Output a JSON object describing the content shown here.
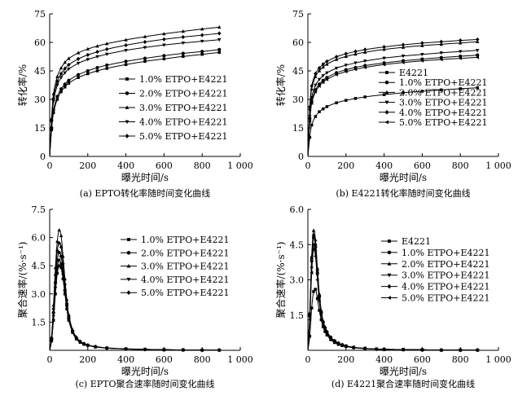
{
  "chart_data": [
    {
      "type": "line",
      "title": "",
      "caption": "(a) EPTO转化率随时间变化曲线",
      "xlabel": "曝光时间/s",
      "ylabel": "转化率/%",
      "xlim": [
        0,
        1000
      ],
      "ylim": [
        0,
        75
      ],
      "xticks": [
        0,
        200,
        400,
        600,
        800,
        1000
      ],
      "xtick_labels": [
        "0",
        "200",
        "400",
        "600",
        "800",
        "1 000"
      ],
      "yticks": [
        0,
        15,
        30,
        45,
        60,
        75
      ],
      "ytick_labels": [
        "0",
        "15",
        "30",
        "45",
        "60",
        "75"
      ],
      "legend_position": "center-right",
      "x": [
        0,
        10,
        20,
        40,
        60,
        80,
        100,
        150,
        200,
        250,
        300,
        400,
        500,
        600,
        700,
        800,
        890
      ],
      "series": [
        {
          "name": "1.0% ETPO+E4221",
          "marker": "square",
          "values": [
            0,
            14,
            23,
            30,
            34,
            36.5,
            38.5,
            41.5,
            43.5,
            45,
            46.3,
            48.3,
            50,
            51.3,
            52.6,
            53.7,
            54.7
          ]
        },
        {
          "name": "2.0% ETPO+E4221",
          "marker": "circle",
          "values": [
            0,
            15,
            24.5,
            31.5,
            35.5,
            38,
            40,
            43,
            45,
            46.7,
            48,
            50,
            51.6,
            53,
            54.2,
            55.2,
            56.2
          ]
        },
        {
          "name": "3.0% ETPO+E4221",
          "marker": "triangle-up",
          "values": [
            0,
            20,
            33,
            42,
            46.5,
            49.5,
            51.5,
            54.5,
            56.5,
            58,
            59.3,
            61.3,
            63,
            64.5,
            65.8,
            67,
            68
          ]
        },
        {
          "name": "4.0% ETPO+E4221",
          "marker": "triangle-down",
          "values": [
            0,
            18,
            29,
            37.5,
            41.5,
            44,
            46,
            49,
            51,
            52.5,
            53.8,
            55.8,
            57.3,
            58.6,
            59.7,
            60.6,
            61.4
          ]
        },
        {
          "name": "5.0% ETPO+E4221",
          "marker": "diamond",
          "values": [
            0,
            19,
            30.5,
            39.5,
            43.5,
            46.2,
            48.2,
            51.3,
            53.4,
            55,
            56.4,
            58.5,
            60.2,
            61.6,
            62.8,
            63.8,
            64.7
          ]
        }
      ]
    },
    {
      "type": "line",
      "title": "",
      "caption": "(b) E4221转化率随时间变化曲线",
      "xlabel": "曝光时间/s",
      "ylabel": "转化率/%",
      "xlim": [
        0,
        1000
      ],
      "ylim": [
        0,
        75
      ],
      "xticks": [
        0,
        200,
        400,
        600,
        800,
        1000
      ],
      "xtick_labels": [
        "0",
        "200",
        "400",
        "600",
        "800",
        "1 000"
      ],
      "yticks": [
        0,
        15,
        30,
        45,
        60,
        75
      ],
      "ytick_labels": [
        "0",
        "15",
        "30",
        "45",
        "60",
        "75"
      ],
      "legend_position": "center-right",
      "x": [
        0,
        10,
        20,
        40,
        60,
        80,
        100,
        150,
        200,
        250,
        300,
        400,
        500,
        600,
        700,
        800,
        890
      ],
      "series": [
        {
          "name": "E4221",
          "marker": "square",
          "values": [
            0,
            10,
            16.5,
            21,
            23.5,
            25,
            26.2,
            28.2,
            29.5,
            30.5,
            31.3,
            32.5,
            33.5,
            34.3,
            35,
            35.6,
            36.1
          ]
        },
        {
          "name": "1.0% ETPO+E4221",
          "marker": "circle",
          "values": [
            0,
            20,
            29,
            35,
            38,
            40,
            41.5,
            44,
            45.6,
            46.8,
            47.8,
            49.2,
            50.3,
            51.2,
            52,
            52.7,
            53.3
          ]
        },
        {
          "name": "2.0% ETPO+E4221",
          "marker": "triangle-up",
          "values": [
            0,
            25,
            35.5,
            42,
            45,
            47,
            48.5,
            51,
            52.6,
            53.8,
            54.8,
            56.3,
            57.4,
            58.3,
            59,
            59.7,
            60.3
          ]
        },
        {
          "name": "3.0% ETPO+E4221",
          "marker": "triangle-down",
          "values": [
            0,
            21,
            31,
            37.5,
            40.5,
            42.5,
            44,
            46.4,
            48,
            49.2,
            50.2,
            51.7,
            52.8,
            53.7,
            54.5,
            55.2,
            55.8
          ]
        },
        {
          "name": "4.0% ETPO+E4221",
          "marker": "diamond",
          "values": [
            0,
            26,
            37,
            43.5,
            46.5,
            48.5,
            50,
            52.4,
            54,
            55.2,
            56.2,
            57.6,
            58.7,
            59.6,
            60.3,
            61,
            61.5
          ]
        },
        {
          "name": "5.0% ETPO+E4221",
          "marker": "triangle-left",
          "values": [
            0,
            18.5,
            28,
            34,
            37,
            39,
            40.5,
            43,
            44.6,
            45.8,
            46.8,
            48.3,
            49.4,
            50.3,
            51,
            51.6,
            52.1
          ]
        }
      ]
    },
    {
      "type": "line",
      "title": "",
      "caption": "(c) EPTO聚合速率随时间变化曲线",
      "xlabel": "曝光时间/s",
      "ylabel": "聚合速率/(%·s⁻¹)",
      "xlim": [
        0,
        1000
      ],
      "ylim": [
        0,
        7.5
      ],
      "xticks": [
        0,
        200,
        400,
        600,
        800,
        1000
      ],
      "xtick_labels": [
        "0",
        "200",
        "400",
        "600",
        "800",
        "1 000"
      ],
      "yticks": [
        1.5,
        3.0,
        4.5,
        6.0,
        7.5
      ],
      "ytick_labels": [
        "1.5",
        "3.0",
        "4.5",
        "6.0",
        "7.5"
      ],
      "legend_position": "center-right",
      "x": [
        0,
        10,
        20,
        30,
        40,
        50,
        60,
        70,
        80,
        90,
        100,
        120,
        140,
        160,
        180,
        200,
        240,
        300,
        400,
        500,
        600,
        700,
        800,
        890
      ],
      "series": [
        {
          "name": "1.0% ETPO+E4221",
          "marker": "square",
          "values": [
            0,
            0.5,
            1.6,
            3.0,
            4.1,
            4.5,
            4.4,
            3.8,
            3.0,
            2.2,
            1.6,
            0.95,
            0.6,
            0.42,
            0.32,
            0.26,
            0.18,
            0.12,
            0.07,
            0.05,
            0.03,
            0.02,
            0.01,
            0.01
          ]
        },
        {
          "name": "2.0% ETPO+E4221",
          "marker": "circle",
          "values": [
            0,
            0.6,
            2.0,
            3.6,
            4.8,
            5.2,
            5.0,
            4.2,
            3.2,
            2.4,
            1.7,
            1.0,
            0.65,
            0.45,
            0.34,
            0.27,
            0.19,
            0.12,
            0.07,
            0.05,
            0.03,
            0.02,
            0.01,
            0.01
          ]
        },
        {
          "name": "3.0% ETPO+E4221",
          "marker": "triangle-up",
          "values": [
            0,
            0.7,
            2.4,
            4.4,
            5.8,
            6.4,
            6.1,
            5.0,
            3.8,
            2.7,
            1.9,
            1.1,
            0.7,
            0.48,
            0.36,
            0.28,
            0.2,
            0.13,
            0.08,
            0.05,
            0.03,
            0.02,
            0.01,
            0.01
          ]
        },
        {
          "name": "4.0% ETPO+E4221",
          "marker": "triangle-down",
          "values": [
            0,
            0.55,
            1.8,
            3.3,
            4.4,
            4.8,
            4.6,
            4.0,
            3.1,
            2.3,
            1.65,
            0.98,
            0.62,
            0.44,
            0.33,
            0.26,
            0.18,
            0.12,
            0.07,
            0.05,
            0.03,
            0.02,
            0.01,
            0.01
          ]
        },
        {
          "name": "5.0% ETPO+E4221",
          "marker": "diamond",
          "values": [
            0,
            0.65,
            2.2,
            4.0,
            5.3,
            5.7,
            5.5,
            4.6,
            3.5,
            2.5,
            1.8,
            1.05,
            0.68,
            0.46,
            0.35,
            0.27,
            0.19,
            0.12,
            0.07,
            0.05,
            0.03,
            0.02,
            0.01,
            0.01
          ]
        }
      ]
    },
    {
      "type": "line",
      "title": "",
      "caption": "(d) E4221聚合速率随时间变化曲线",
      "xlabel": "曝光时间/s",
      "ylabel": "聚合速率/(%·s⁻¹)",
      "xlim": [
        0,
        1000
      ],
      "ylim": [
        0,
        6.0
      ],
      "xticks": [
        0,
        200,
        400,
        600,
        800,
        1000
      ],
      "xtick_labels": [
        "0",
        "200",
        "400",
        "600",
        "800",
        "1 000"
      ],
      "yticks": [
        1.5,
        3.0,
        4.5,
        6.0
      ],
      "ytick_labels": [
        "1.5",
        "3.0",
        "4.5",
        "6.0"
      ],
      "legend_position": "center-right",
      "x": [
        0,
        10,
        20,
        30,
        40,
        50,
        60,
        70,
        80,
        90,
        100,
        120,
        140,
        160,
        180,
        200,
        240,
        300,
        360,
        400,
        500,
        600,
        700,
        800,
        890
      ],
      "series": [
        {
          "name": "E4221",
          "marker": "square",
          "values": [
            0,
            0.6,
            1.8,
            2.5,
            2.6,
            2.2,
            1.7,
            1.3,
            1.0,
            0.8,
            0.65,
            0.45,
            0.33,
            0.25,
            0.2,
            0.16,
            0.11,
            0.07,
            0.05,
            0.04,
            0.03,
            0.02,
            0.01,
            0.01,
            0.01
          ]
        },
        {
          "name": "1.0% ETPO+E4221",
          "marker": "circle",
          "values": [
            0,
            1.5,
            3.8,
            4.8,
            4.4,
            3.3,
            2.3,
            1.6,
            1.2,
            0.95,
            0.78,
            0.55,
            0.4,
            0.3,
            0.23,
            0.18,
            0.12,
            0.08,
            0.05,
            0.04,
            0.03,
            0.02,
            0.01,
            0.01,
            0.01
          ]
        },
        {
          "name": "2.0% ETPO+E4221",
          "marker": "triangle-up",
          "values": [
            0,
            1.6,
            4.0,
            5.1,
            4.7,
            3.5,
            2.4,
            1.7,
            1.25,
            1.0,
            0.8,
            0.56,
            0.41,
            0.31,
            0.24,
            0.19,
            0.13,
            0.08,
            0.05,
            0.04,
            0.03,
            0.02,
            0.01,
            0.01,
            0.01
          ]
        },
        {
          "name": "3.0% ETPO+E4221",
          "marker": "triangle-down",
          "values": [
            0,
            1.4,
            3.5,
            4.5,
            4.2,
            3.2,
            2.2,
            1.55,
            1.15,
            0.92,
            0.75,
            0.53,
            0.39,
            0.29,
            0.22,
            0.18,
            0.12,
            0.08,
            0.05,
            0.04,
            0.03,
            0.02,
            0.01,
            0.01,
            0.01
          ]
        },
        {
          "name": "4.0% ETPO+E4221",
          "marker": "diamond",
          "values": [
            0,
            1.55,
            3.9,
            4.9,
            4.5,
            3.4,
            2.35,
            1.65,
            1.22,
            0.97,
            0.79,
            0.55,
            0.4,
            0.3,
            0.23,
            0.18,
            0.12,
            0.08,
            0.05,
            0.04,
            0.03,
            0.02,
            0.01,
            0.01,
            0.01
          ]
        },
        {
          "name": "5.0% ETPO+E4221",
          "marker": "triangle-left",
          "values": [
            0,
            1.3,
            3.3,
            4.3,
            4.0,
            3.0,
            2.1,
            1.5,
            1.1,
            0.9,
            0.73,
            0.51,
            0.38,
            0.28,
            0.22,
            0.17,
            0.12,
            0.08,
            0.05,
            0.04,
            0.03,
            0.02,
            0.01,
            0.01,
            0.01
          ]
        }
      ]
    }
  ]
}
